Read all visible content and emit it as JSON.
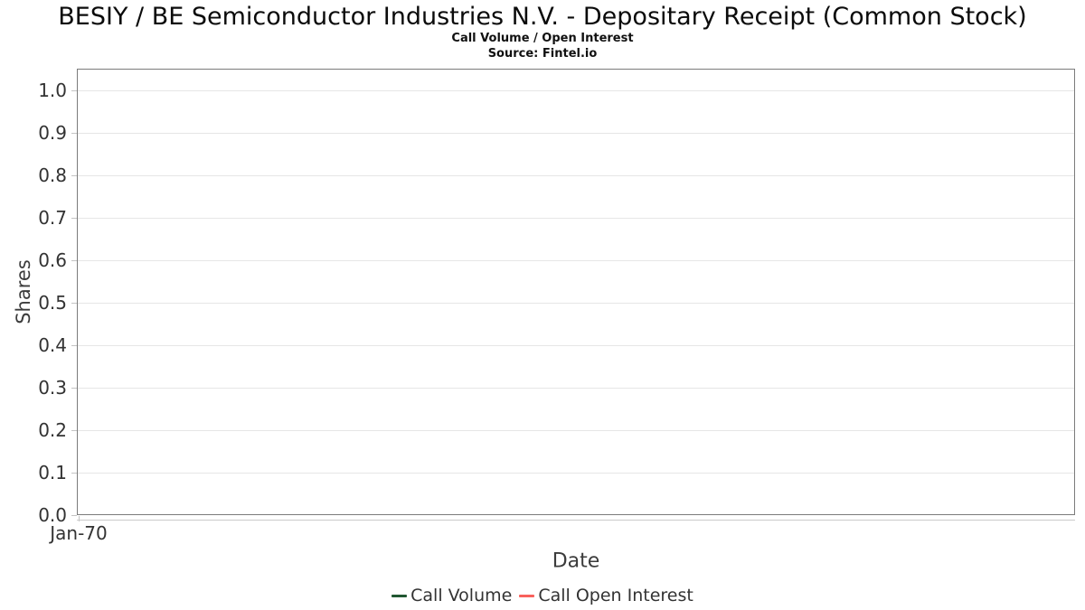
{
  "header": {
    "title": "BESIY / BE Semiconductor Industries N.V. - Depositary Receipt (Common Stock)",
    "subtitle": "Call Volume / Open Interest",
    "source": "Source: Fintel.io"
  },
  "chart_data": {
    "type": "line",
    "title": "BESIY / BE Semiconductor Industries N.V. - Depositary Receipt (Common Stock)",
    "subtitle": "Call Volume / Open Interest",
    "source": "Source: Fintel.io",
    "xlabel": "Date",
    "ylabel": "Shares",
    "ylim": [
      0.0,
      1.0
    ],
    "ytick_labels": [
      "0.0",
      "0.1",
      "0.2",
      "0.3",
      "0.4",
      "0.5",
      "0.6",
      "0.7",
      "0.8",
      "0.9",
      "1.0"
    ],
    "xtick_labels": [
      "Jan-70"
    ],
    "grid": true,
    "legend_position": "bottom",
    "series": [
      {
        "name": "Call Volume",
        "color": "#215732",
        "x": [],
        "values": []
      },
      {
        "name": "Call Open Interest",
        "color": "#f8615c",
        "x": [],
        "values": []
      }
    ],
    "colors": {
      "grid": "#e6e6e6",
      "plot_border": "#7b7b7b",
      "axis_line": "#cbcbcb",
      "tick_mark": "#c4c4c4",
      "tick_label": "#333333",
      "axis_title": "#3c3c3c",
      "legend_text": "#333333",
      "title_text": "#0b0b0b"
    }
  }
}
